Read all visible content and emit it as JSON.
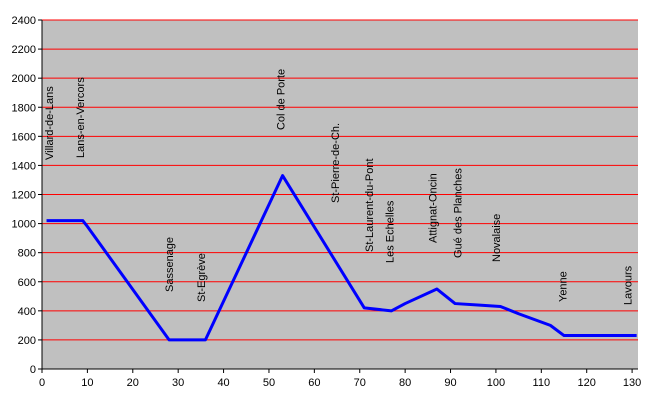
{
  "chart_data": {
    "type": "line",
    "x": [
      1,
      9,
      10,
      28,
      36,
      53,
      71,
      77,
      80,
      87,
      91,
      96,
      101,
      105,
      112,
      115,
      131
    ],
    "series": [
      {
        "color": "#0000ff",
        "values": [
          1020,
          1020,
          980,
          200,
          200,
          1330,
          420,
          400,
          450,
          550,
          450,
          440,
          430,
          380,
          300,
          230,
          230
        ]
      }
    ],
    "xlim": [
      0,
      131.3
    ],
    "xticks": [
      0,
      10,
      20,
      30,
      40,
      50,
      60,
      70,
      80,
      90,
      100,
      110,
      120,
      130
    ],
    "ylim": [
      0,
      2400
    ],
    "yticks": [
      0,
      200,
      400,
      600,
      800,
      1000,
      1200,
      1400,
      1600,
      1800,
      2000,
      2200,
      2400
    ],
    "grid": true,
    "grid_color": "#ff0000",
    "background": "#c0c0c0",
    "annotations": [
      {
        "text": "Villard-de-Lans",
        "x": 1.5
      },
      {
        "text": "Lans-en-Vercors",
        "x": 8.4
      },
      {
        "text": "Sassenage",
        "x": 28
      },
      {
        "text": "St-Egrève",
        "x": 35
      },
      {
        "text": "Col de Porte",
        "x": 52.5
      },
      {
        "text": "St-Pierre-de-Ch.",
        "x": 64.5
      },
      {
        "text": "St-Laurent-du-Pont",
        "x": 72
      },
      {
        "text": "Les Echelles",
        "x": 76.5
      },
      {
        "text": "Attignat-Oncin",
        "x": 86
      },
      {
        "text": "Gué des Planches",
        "x": 91.5
      },
      {
        "text": "Novalaise",
        "x": 100
      },
      {
        "text": "Yenne",
        "x": 114.7
      },
      {
        "text": "Lavours",
        "x": 129
      }
    ]
  }
}
